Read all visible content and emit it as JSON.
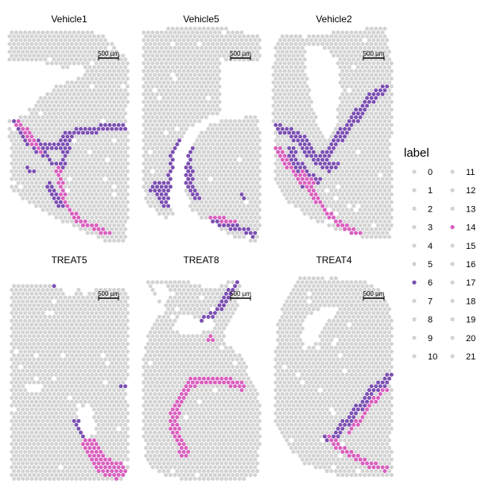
{
  "chart_data": {
    "type": "scatter",
    "description_note": "",
    "legend_title": "label",
    "legend_labels": [
      "0",
      "1",
      "2",
      "3",
      "4",
      "5",
      "6",
      "7",
      "8",
      "9",
      "10",
      "11",
      "12",
      "13",
      "14",
      "15",
      "16",
      "17",
      "18",
      "19",
      "20",
      "21"
    ],
    "colors": {
      "background_spot": "#d3d3d3",
      "label_6": "#7b4fb1",
      "label_14": "#d85fbd",
      "other_labels": "#d3d3d3",
      "text": "#000000"
    },
    "scale_bar_label": "500 µm",
    "panels": [
      {
        "title": "Vehicle1"
      },
      {
        "title": "Vehicle5"
      },
      {
        "title": "Vehicle2"
      },
      {
        "title": "TREAT5"
      },
      {
        "title": "TREAT8"
      },
      {
        "title": "TREAT4"
      }
    ]
  }
}
